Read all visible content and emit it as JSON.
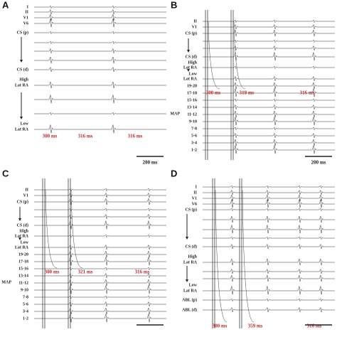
{
  "panels": [
    {
      "letter": "A",
      "labels": [
        "I",
        "II",
        "V1",
        "V6",
        "CS (p)",
        "CS (d)",
        "High",
        "Lat RA",
        "Low",
        "Lat RA"
      ],
      "intervals": [
        "300 ms",
        "316 ms",
        "316 ms"
      ],
      "scale": "200 ms"
    },
    {
      "letter": "B",
      "labels": [
        "II",
        "V1",
        "CS (p)",
        "CS (d)",
        "High",
        "Lat RA",
        "Low",
        "Lat RA",
        "19-20",
        "17-18",
        "15-16",
        "13-14",
        "11-12",
        "MAP",
        "9-10",
        "7-8",
        "5-6",
        "3-4",
        "1-2"
      ],
      "intervals": [
        "300 ms",
        "319 ms",
        "316 ms"
      ],
      "scale": "200 ms"
    },
    {
      "letter": "C",
      "labels": [
        "II",
        "V1",
        "CS (p)",
        "CS (d)",
        "High",
        "Lat RA",
        "Low",
        "Lat RA",
        "19-20",
        "17-18",
        "15-16",
        "13-14",
        "11-12",
        "MAP",
        "9-10",
        "7-8",
        "5-6",
        "3-4",
        "1-2"
      ],
      "intervals": [
        "300 ms",
        "321 ms",
        "316 ms"
      ]
    },
    {
      "letter": "D",
      "labels": [
        "I",
        "II",
        "V1",
        "V6",
        "CS (p)",
        "CS (d)",
        "High",
        "Lat RA",
        "Low",
        "Lat RA",
        "ABL (p)",
        "ABL (d)"
      ],
      "intervals": [
        "300 ms",
        "359 ms",
        "316 ms"
      ]
    }
  ]
}
